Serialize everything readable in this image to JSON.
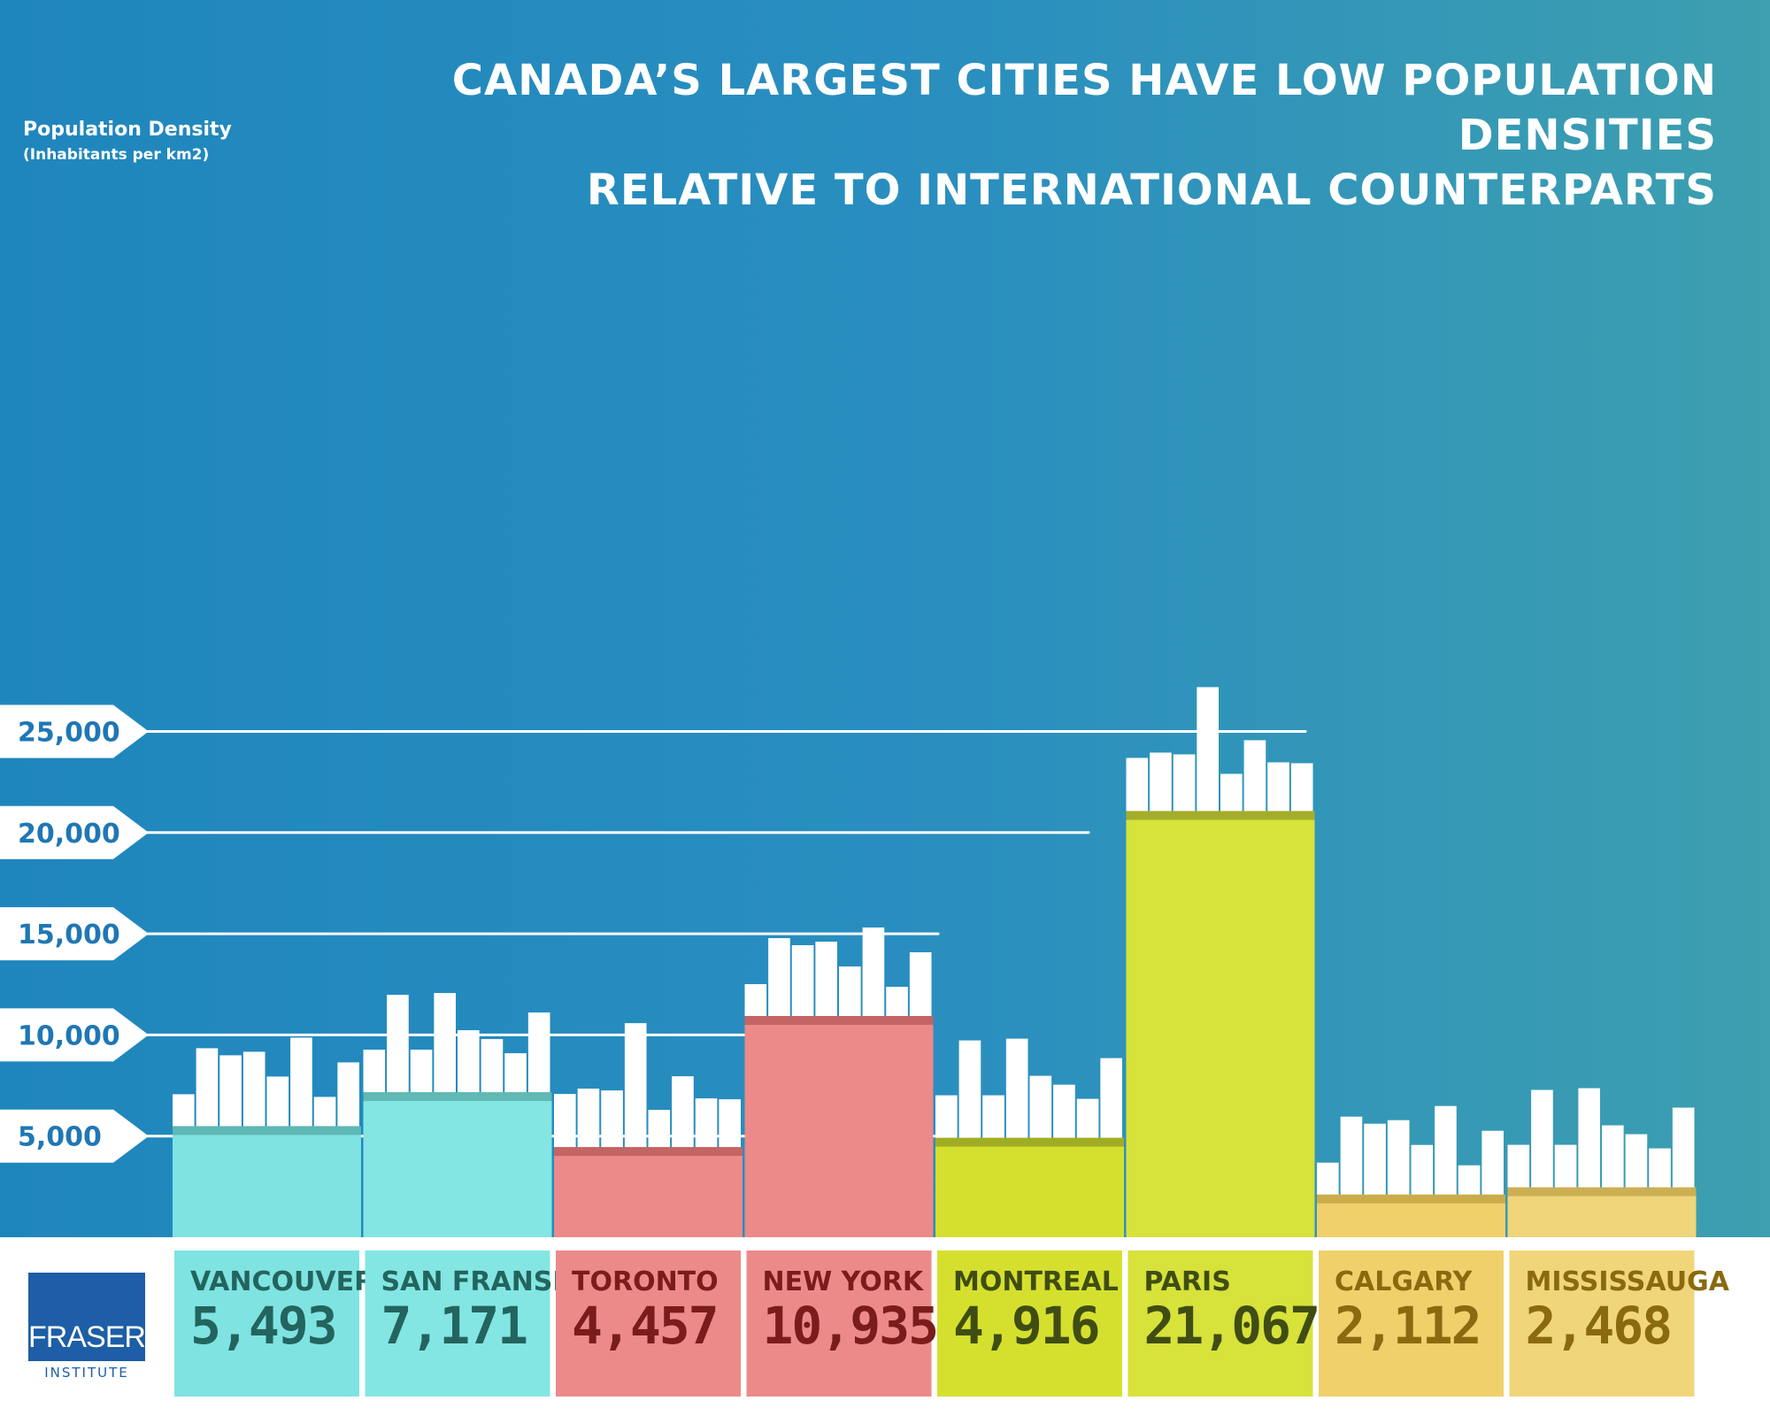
{
  "title": {
    "line1": "CANADA’S LARGEST CITIES HAVE LOW POPULATION DENSITIES",
    "line2": "RELATIVE TO INTERNATIONAL COUNTERPARTS"
  },
  "logo": {
    "brand": "FRASER",
    "sub": "INSTITUTE"
  },
  "chart_data": {
    "type": "bar",
    "title": "CANADA’S LARGEST CITIES HAVE LOW POPULATION DENSITIES RELATIVE TO INTERNATIONAL COUNTERPARTS",
    "ylabel": "Population Density",
    "ylabel_sub": "(Inhabitants per km2)",
    "xlabel": "",
    "ylim": [
      0,
      25000
    ],
    "yticks": [
      5000,
      10000,
      15000,
      20000,
      25000
    ],
    "ytick_labels": [
      "5,000",
      "10,000",
      "15,000",
      "20,000",
      "25,000"
    ],
    "categories": [
      "VANCOUVER",
      "SAN FRANSISCO",
      "TORONTO",
      "NEW YORK",
      "MONTREAL",
      "PARIS",
      "CALGARY",
      "MISSISSAUGA"
    ],
    "values": [
      5493,
      7171,
      4457,
      10935,
      4916,
      21067,
      2112,
      2468
    ],
    "value_labels": [
      "5,493",
      "7,171",
      "4,457",
      "10,935",
      "4,916",
      "21,067",
      "2,112",
      "2,468"
    ],
    "grid": true,
    "legend": "none",
    "colors": {
      "VANCOUVER": "#7fe3e1",
      "SAN FRANSISCO": "#83e6e3",
      "TORONTO": "#ec8a8a",
      "NEW YORK": "#ec8a8a",
      "MONTREAL": "#d5e02e",
      "PARIS": "#d7e23a",
      "CALGARY": "#efd06b",
      "MISSISSAUGA": "#f0d57a"
    },
    "text_colors": {
      "VANCOUVER": "#23645e",
      "SAN FRANSISCO": "#23645e",
      "TORONTO": "#7a1c1c",
      "NEW YORK": "#7a1c1c",
      "MONTREAL": "#3f4d12",
      "PARIS": "#3f4d12",
      "CALGARY": "#8a6a0f",
      "MISSISSAUGA": "#8a6a0f"
    }
  }
}
